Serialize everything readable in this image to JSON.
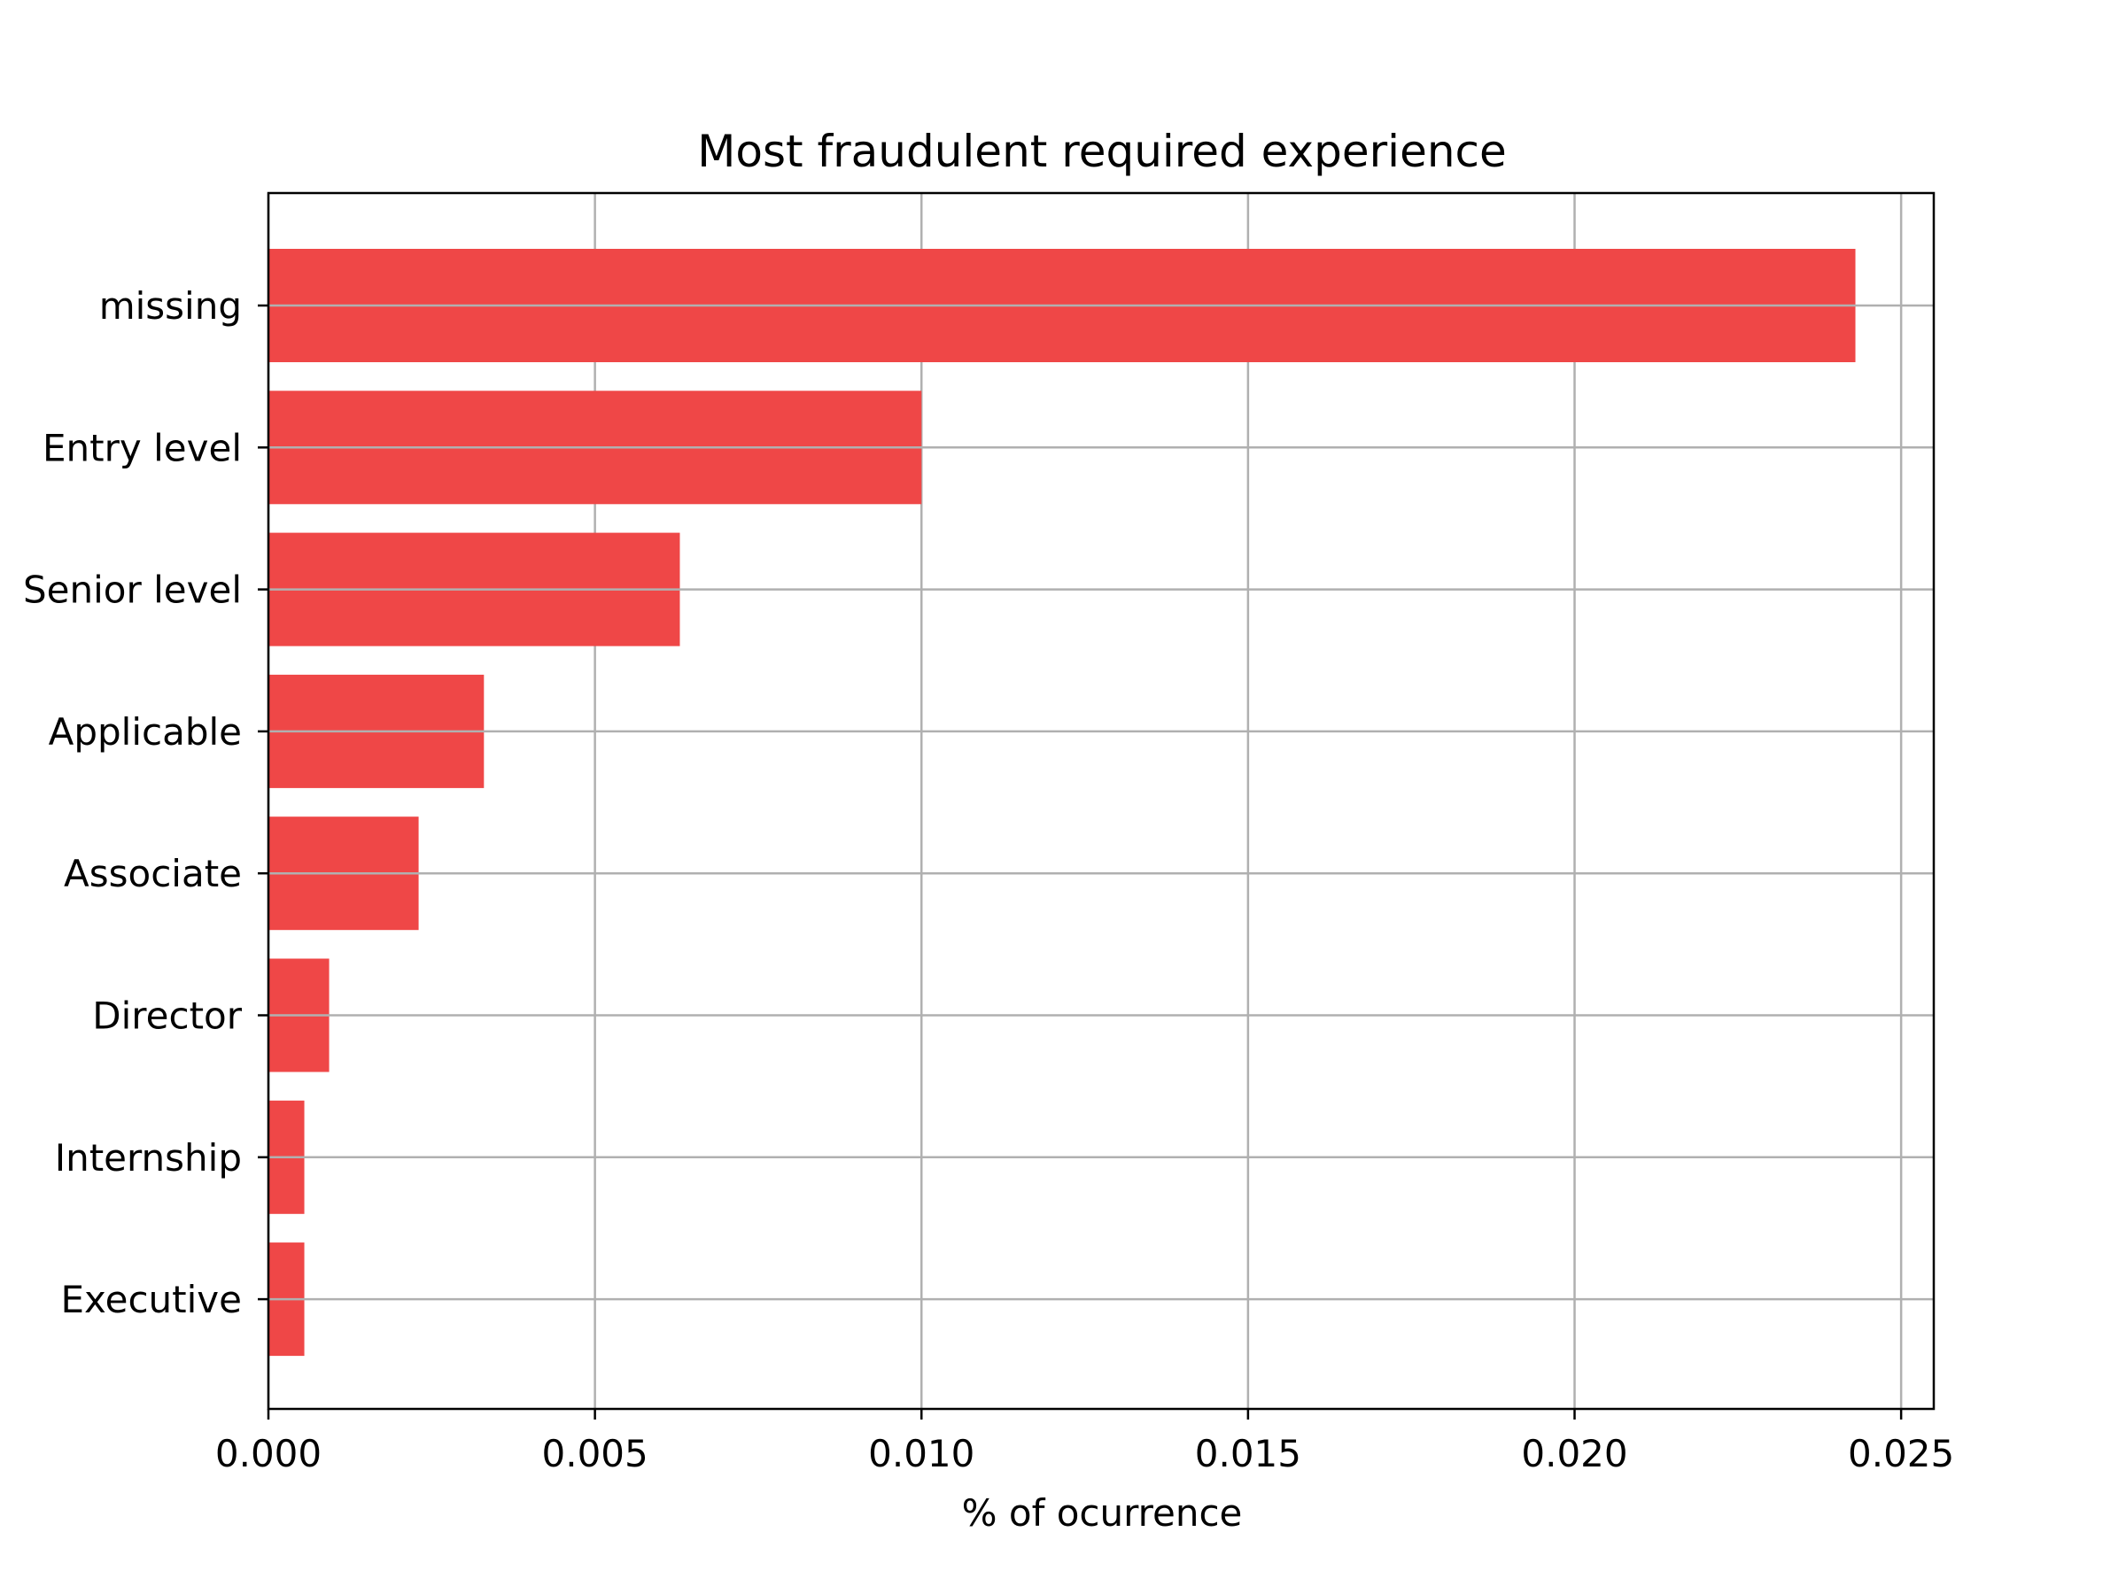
{
  "chart_data": {
    "type": "bar",
    "orientation": "horizontal",
    "title": "Most fraudulent required experience",
    "xlabel": "% of ocurrence",
    "ylabel": "",
    "categories": [
      "missing",
      "Entry level",
      "Senior level",
      "Applicable",
      "Associate",
      "Director",
      "Internship",
      "Executive"
    ],
    "values": [
      0.0243,
      0.01,
      0.0063,
      0.0033,
      0.0023,
      0.00093,
      0.00055,
      0.00055
    ],
    "xlim": [
      0,
      0.0255
    ],
    "xticks": [
      0,
      0.005,
      0.01,
      0.015,
      0.02,
      0.025
    ],
    "xtick_labels": [
      "0.000",
      "0.005",
      "0.010",
      "0.015",
      "0.020",
      "0.025"
    ],
    "grid": true,
    "bar_color": "#ef4747",
    "grid_color": "#b0b0b0"
  }
}
